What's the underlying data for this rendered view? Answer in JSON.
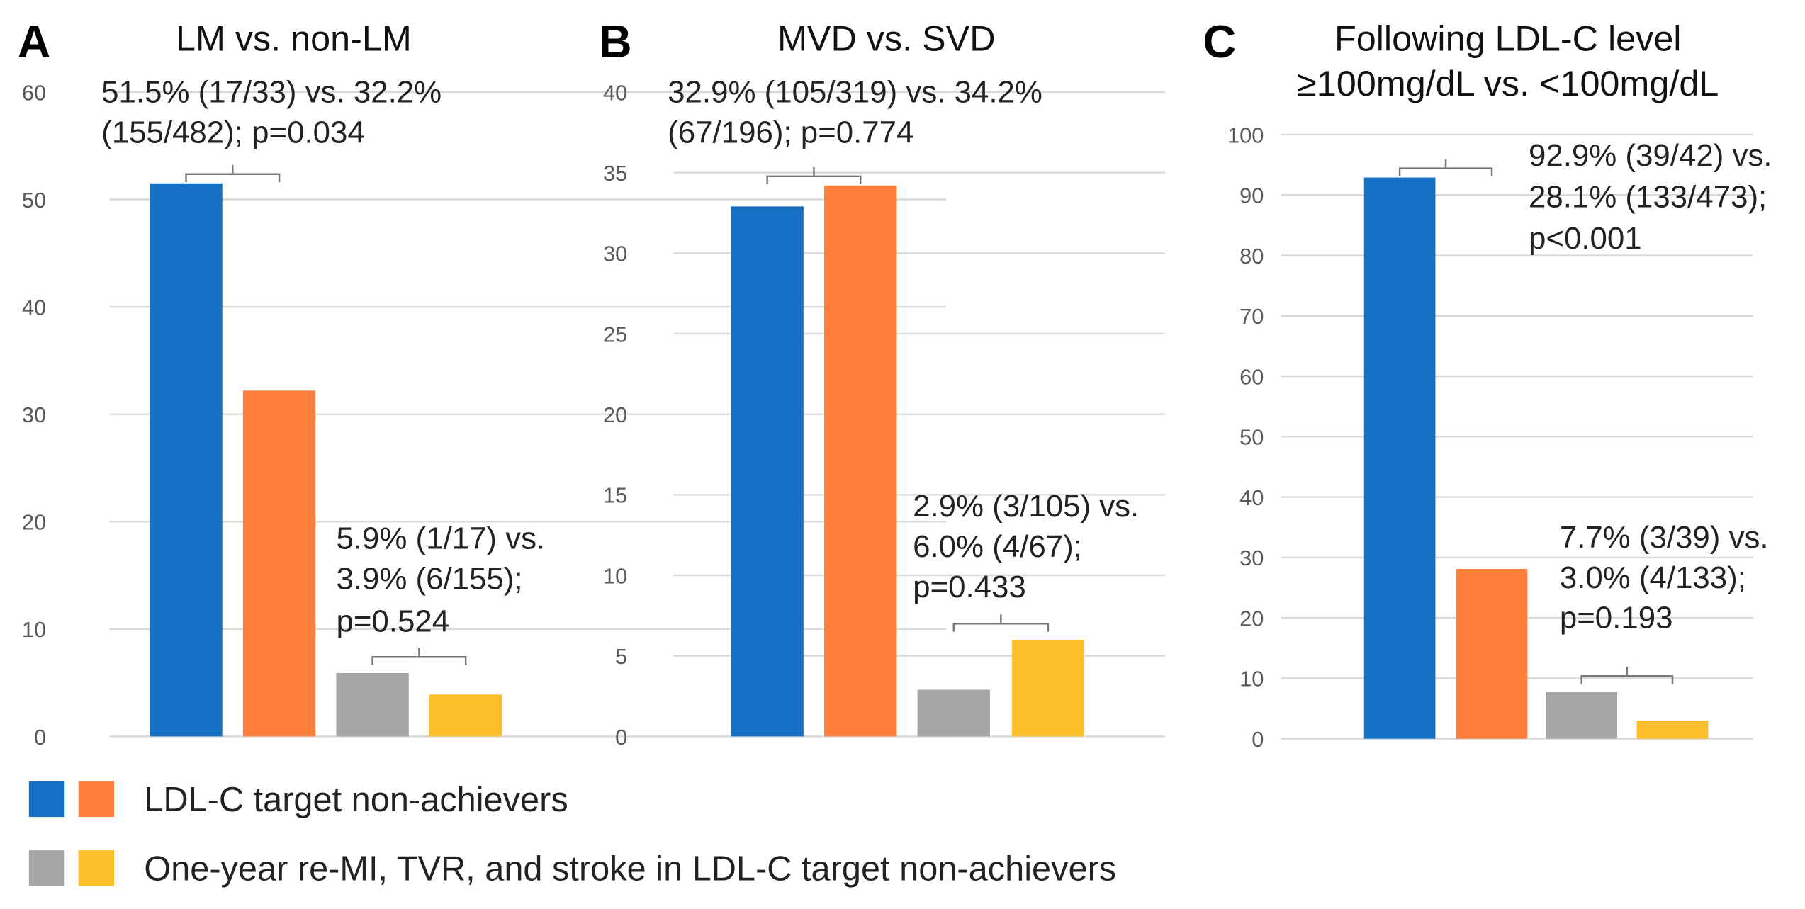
{
  "colors": {
    "blue": "#1570c4",
    "orange": "#fd7f3b",
    "gray": "#a5a5a5",
    "yellow": "#fdc02c"
  },
  "legend": [
    {
      "label": "LDL-C target non-achievers",
      "colors": [
        "blue",
        "orange"
      ]
    },
    {
      "label": "One-year re-MI, TVR, and stroke in LDL-C target non-achievers",
      "colors": [
        "gray",
        "yellow"
      ]
    }
  ],
  "chart_data": [
    {
      "type": "bar",
      "panel": "A",
      "title": [
        "LM vs. non-LM"
      ],
      "ylim": [
        0,
        60
      ],
      "yticks": [
        0,
        10,
        20,
        30,
        40,
        50,
        60
      ],
      "grid": true,
      "series": [
        {
          "name": "LDL-C target non-achievers (LM)",
          "color": "blue",
          "value": 51.5
        },
        {
          "name": "LDL-C target non-achievers (non-LM)",
          "color": "orange",
          "value": 32.2
        },
        {
          "name": "Events (LM)",
          "color": "gray",
          "value": 5.9
        },
        {
          "name": "Events (non-LM)",
          "color": "yellow",
          "value": 3.9
        }
      ],
      "annotations": [
        {
          "lines": [
            "51.5% (17/33) vs. 32.2%",
            "(155/482); p=0.034"
          ]
        },
        {
          "lines": [
            "5.9% (1/17) vs.",
            "3.9% (6/155);",
            "p=0.524"
          ]
        }
      ]
    },
    {
      "type": "bar",
      "panel": "B",
      "title": [
        "MVD vs. SVD"
      ],
      "ylim": [
        0,
        40
      ],
      "yticks": [
        0,
        5,
        10,
        15,
        20,
        25,
        30,
        35,
        40
      ],
      "grid": true,
      "series": [
        {
          "name": "LDL-C target non-achievers (MVD)",
          "color": "blue",
          "value": 32.9
        },
        {
          "name": "LDL-C target non-achievers (SVD)",
          "color": "orange",
          "value": 34.2
        },
        {
          "name": "Events (MVD)",
          "color": "gray",
          "value": 2.9
        },
        {
          "name": "Events (SVD)",
          "color": "yellow",
          "value": 6.0
        }
      ],
      "annotations": [
        {
          "lines": [
            "32.9% (105/319) vs. 34.2%",
            "(67/196); p=0.774"
          ]
        },
        {
          "lines": [
            "2.9% (3/105) vs.",
            "6.0% (4/67);",
            "p=0.433"
          ]
        }
      ]
    },
    {
      "type": "bar",
      "panel": "C",
      "title": [
        "Following LDL-C level",
        "≥100mg/dL vs. <100mg/dL"
      ],
      "ylim": [
        0,
        100
      ],
      "yticks": [
        0,
        10,
        20,
        30,
        40,
        50,
        60,
        70,
        80,
        90,
        100
      ],
      "grid": true,
      "series": [
        {
          "name": "LDL-C target non-achievers (≥100mg/dL)",
          "color": "blue",
          "value": 92.9
        },
        {
          "name": "LDL-C target non-achievers (<100mg/dL)",
          "color": "orange",
          "value": 28.1
        },
        {
          "name": "Events (≥100mg/dL)",
          "color": "gray",
          "value": 7.7
        },
        {
          "name": "Events (<100mg/dL)",
          "color": "yellow",
          "value": 3.0
        }
      ],
      "annotations": [
        {
          "lines": [
            "92.9% (39/42) vs.",
            "28.1% (133/473);",
            "p<0.001"
          ]
        },
        {
          "lines": [
            "7.7% (3/39) vs.",
            "3.0% (4/133);",
            "p=0.193"
          ]
        }
      ]
    }
  ]
}
